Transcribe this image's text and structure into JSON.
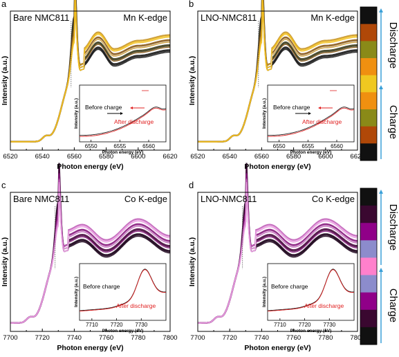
{
  "colors": {
    "arrow": "#3aa0d8",
    "red": "#e02020",
    "mn_gradient": [
      "#1a1a1a",
      "#3d3d1e",
      "#8a5a1a",
      "#c8962a",
      "#f2c020"
    ],
    "co_gradient": [
      "#1a0018",
      "#4a0a40",
      "#8a1c80",
      "#c060b8",
      "#e8a0e0"
    ],
    "mn_bar": [
      "#111111",
      "#b04808",
      "#8a8a18",
      "#f09010",
      "#f0c820",
      "#f09010",
      "#8a8a18",
      "#b04808",
      "#111111"
    ],
    "co_bar": [
      "#111111",
      "#3a0830",
      "#900088",
      "#8c8ccc",
      "#ff80cc",
      "#8c8ccc",
      "#900088",
      "#3a0830",
      "#111111"
    ]
  },
  "bars": {
    "label_top": "Discharge",
    "label_bottom": "Charge"
  },
  "chart_data": [
    {
      "type": "line",
      "panel": "a",
      "title_left": "Bare NMC811",
      "title_right": "Mn K-edge",
      "xlabel": "Photon energy (eV)",
      "ylabel": "Intensity (a.u.)",
      "xlim": [
        6520,
        6620
      ],
      "xticks": [
        "6520",
        "6540",
        "6560",
        "6580",
        "6600",
        "6620"
      ],
      "edge": {
        "pre": 6542,
        "edge": 6552,
        "peak": 6560,
        "peak_val": 0.98,
        "base": 0.06,
        "broad": [
          [
            6565,
            0.62
          ],
          [
            6575,
            0.74
          ],
          [
            6585,
            0.62
          ],
          [
            6600,
            0.68
          ],
          [
            6620,
            0.72
          ]
        ]
      },
      "inset": {
        "xlim": [
          6548,
          6563
        ],
        "xticks": [
          "6550",
          "6555",
          "6560"
        ],
        "xlabel": "Photon energy (eV)",
        "ylabel": "Intensity (a.u.)",
        "label_before": "Before charge",
        "label_after": "After discharge"
      }
    },
    {
      "type": "line",
      "panel": "b",
      "title_left": "LNO-NMC811",
      "title_right": "Mn K-edge",
      "xlabel": "Photon energy (eV)",
      "ylabel": "Intensity (a.u.)",
      "xlim": [
        6520,
        6620
      ],
      "xticks": [
        "6520",
        "6540",
        "6560",
        "6580",
        "6600",
        "6620"
      ],
      "edge": {
        "pre": 6542,
        "edge": 6552,
        "peak": 6560,
        "peak_val": 0.98,
        "base": 0.06,
        "broad": [
          [
            6565,
            0.62
          ],
          [
            6575,
            0.74
          ],
          [
            6585,
            0.62
          ],
          [
            6600,
            0.68
          ],
          [
            6620,
            0.72
          ]
        ]
      },
      "inset": {
        "xlim": [
          6548,
          6563
        ],
        "xticks": [
          "6550",
          "6555",
          "6560"
        ],
        "xlabel": "Photon energy (eV)",
        "ylabel": "Intensity (a.u.)",
        "label_before": "Before charge",
        "label_after": "After discharge"
      }
    },
    {
      "type": "line",
      "panel": "c",
      "title_left": "Bare NMC811",
      "title_right": "Co K-edge",
      "xlabel": "Photon energy (eV)",
      "ylabel": "Intensity (a.u.)",
      "xlim": [
        7700,
        7800
      ],
      "xticks": [
        "7700",
        "7720",
        "7740",
        "7760",
        "7780",
        "7800"
      ],
      "edge": {
        "pre": 7712,
        "edge": 7722,
        "peak": 7730,
        "peak_val": 0.95,
        "base": 0.06,
        "broad": [
          [
            7735,
            0.62
          ],
          [
            7745,
            0.66
          ],
          [
            7760,
            0.55
          ],
          [
            7780,
            0.7
          ],
          [
            7800,
            0.58
          ]
        ]
      },
      "inset": {
        "xlim": [
          7705,
          7740
        ],
        "xticks": [
          "7710",
          "7720",
          "7730"
        ],
        "xlabel": "Photon energy (eV)",
        "ylabel": "Intensity (a.u.)",
        "label_before": "Before charge",
        "label_after": "After discharge"
      }
    },
    {
      "type": "line",
      "panel": "d",
      "title_left": "LNO-NMC811",
      "title_right": "Co K-edge",
      "xlabel": "Photon energy (eV)",
      "ylabel": "Intensity (a.u.)",
      "xlim": [
        7700,
        7800
      ],
      "xticks": [
        "7700",
        "7720",
        "7740",
        "7760",
        "7780",
        "7800"
      ],
      "edge": {
        "pre": 7712,
        "edge": 7722,
        "peak": 7730,
        "peak_val": 0.95,
        "base": 0.06,
        "broad": [
          [
            7735,
            0.62
          ],
          [
            7745,
            0.66
          ],
          [
            7760,
            0.55
          ],
          [
            7780,
            0.7
          ],
          [
            7800,
            0.58
          ]
        ]
      },
      "inset": {
        "xlim": [
          7705,
          7740
        ],
        "xticks": [
          "7710",
          "7720",
          "7730"
        ],
        "xlabel": "Photon energy (eV)",
        "ylabel": "Intensity (a.u.)",
        "label_before": "Before charge",
        "label_after": "After discharge"
      }
    }
  ]
}
